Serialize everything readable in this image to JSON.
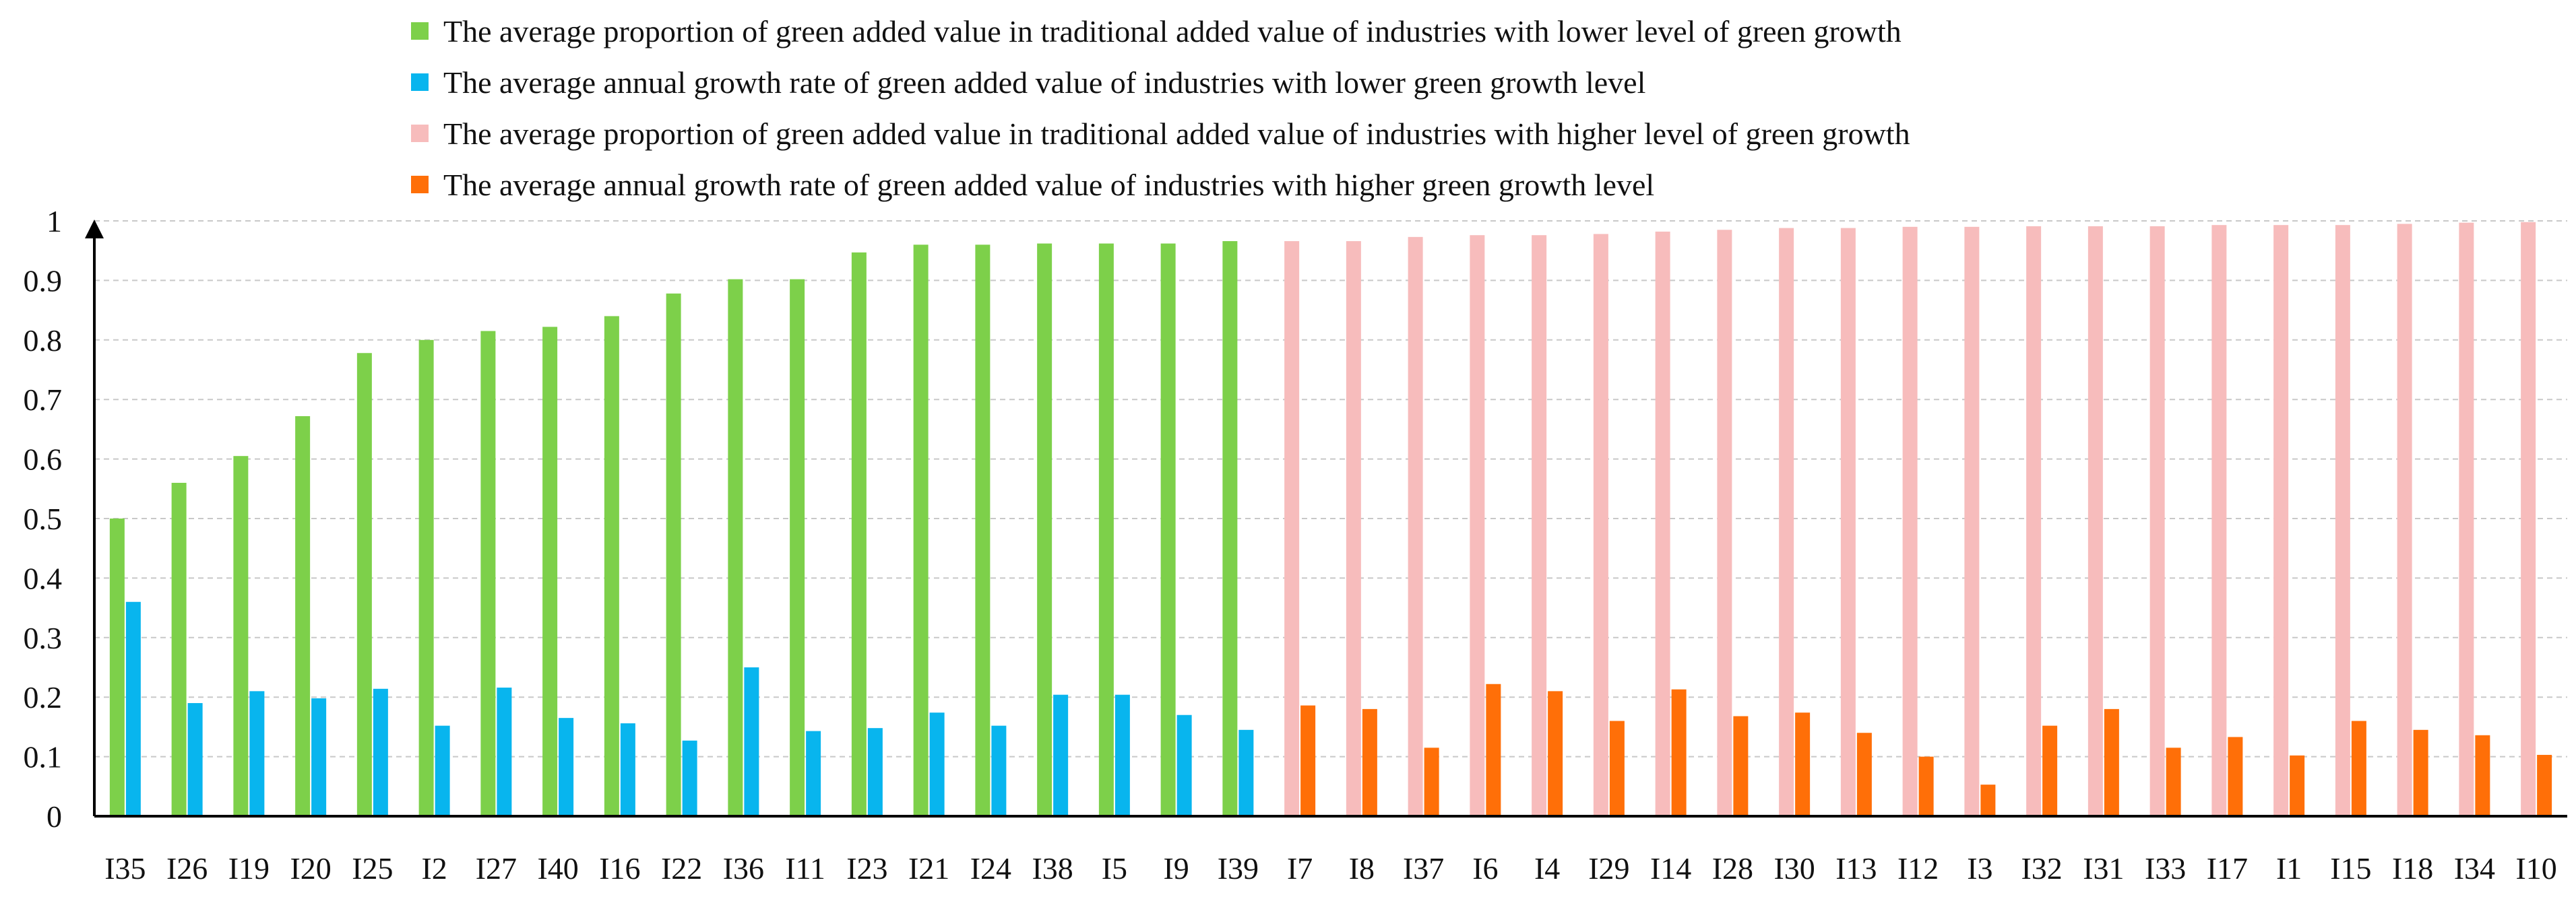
{
  "chart_data": {
    "type": "bar",
    "title": "",
    "xlabel": "",
    "ylabel": "",
    "ylim": [
      0,
      1
    ],
    "yticks": [
      0,
      0.1,
      0.2,
      0.3,
      0.4,
      0.5,
      0.6,
      0.7,
      0.8,
      0.9,
      1
    ],
    "ytick_labels": [
      "0",
      "0.1",
      "0.2",
      "0.3",
      "0.4",
      "0.5",
      "0.6",
      "0.7",
      "0.8",
      "0.9",
      "1"
    ],
    "grid": true,
    "legend_position": "top-center",
    "categories": [
      "I35",
      "I26",
      "I19",
      "I20",
      "I25",
      "I2",
      "I27",
      "I40",
      "I16",
      "I22",
      "I36",
      "I11",
      "I23",
      "I21",
      "I24",
      "I38",
      "I5",
      "I9",
      "I39",
      "I7",
      "I8",
      "I37",
      "I6",
      "I4",
      "I29",
      "I14",
      "I28",
      "I30",
      "I13",
      "I12",
      "I3",
      "I32",
      "I31",
      "I33",
      "I17",
      "I1",
      "I15",
      "I18",
      "I34",
      "I10"
    ],
    "groups": [
      {
        "name": "lower",
        "categories": [
          "I35",
          "I26",
          "I19",
          "I20",
          "I25",
          "I2",
          "I27",
          "I40",
          "I16",
          "I22",
          "I36",
          "I11",
          "I23",
          "I21",
          "I24",
          "I38",
          "I5",
          "I9",
          "I39"
        ],
        "proportion": [
          0.5,
          0.56,
          0.605,
          0.672,
          0.778,
          0.8,
          0.815,
          0.822,
          0.84,
          0.878,
          0.902,
          0.902,
          0.947,
          0.96,
          0.96,
          0.962,
          0.962,
          0.962,
          0.966
        ],
        "growth": [
          0.36,
          0.19,
          0.21,
          0.198,
          0.214,
          0.152,
          0.216,
          0.165,
          0.156,
          0.127,
          0.25,
          0.143,
          0.148,
          0.174,
          0.152,
          0.204,
          0.204,
          0.17,
          0.145
        ]
      },
      {
        "name": "higher",
        "categories": [
          "I7",
          "I8",
          "I37",
          "I6",
          "I4",
          "I29",
          "I14",
          "I28",
          "I30",
          "I13",
          "I12",
          "I3",
          "I32",
          "I31",
          "I33",
          "I17",
          "I1",
          "I15",
          "I18",
          "I34",
          "I10"
        ],
        "proportion": [
          0.966,
          0.966,
          0.973,
          0.976,
          0.976,
          0.978,
          0.982,
          0.985,
          0.988,
          0.988,
          0.99,
          0.99,
          0.991,
          0.991,
          0.991,
          0.993,
          0.993,
          0.993,
          0.995,
          0.997,
          0.998
        ],
        "growth": [
          0.186,
          0.18,
          0.115,
          0.222,
          0.21,
          0.16,
          0.213,
          0.168,
          0.174,
          0.14,
          0.1,
          0.053,
          0.152,
          0.18,
          0.115,
          0.133,
          0.102,
          0.16,
          0.145,
          0.136,
          0.103
        ]
      }
    ],
    "series": [
      {
        "name": "The average proportion of green added value in traditional added value of industries with lower level of green growth",
        "color": "#7dd04a"
      },
      {
        "name": "The average annual growth rate of green added value of industries with lower green growth level",
        "color": "#08b5ee"
      },
      {
        "name": "The average proportion of green added value in traditional added value of industries with higher level of green growth",
        "color": "#f7bcbc"
      },
      {
        "name": "The average annual growth rate of green added value of industries with higher green growth level",
        "color": "#ff6f08"
      }
    ]
  }
}
